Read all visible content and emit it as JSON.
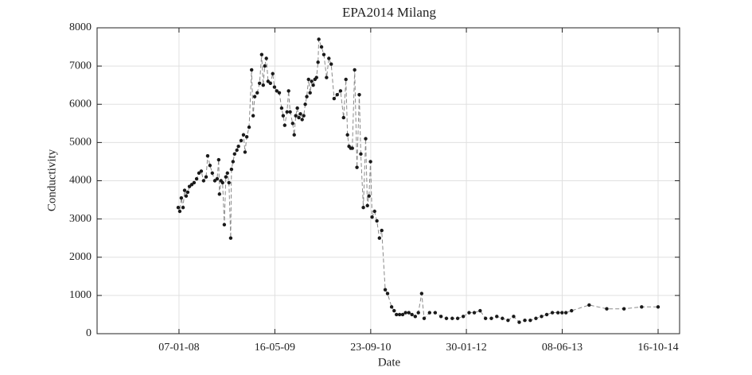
{
  "chart_data": {
    "type": "line",
    "title": "EPA2014 Milang",
    "xlabel": "Date",
    "ylabel": "Conductivity",
    "x": [
      "2008-01-03",
      "2008-01-11",
      "2008-01-19",
      "2008-01-28",
      "2008-02-05",
      "2008-02-13",
      "2008-02-21",
      "2008-03-01",
      "2008-03-13",
      "2008-03-25",
      "2008-04-07",
      "2008-04-19",
      "2008-05-01",
      "2008-05-13",
      "2008-05-26",
      "2008-06-03",
      "2008-06-15",
      "2008-06-27",
      "2008-07-10",
      "2008-07-22",
      "2008-07-30",
      "2008-08-03",
      "2008-08-11",
      "2008-08-19",
      "2008-08-28",
      "2008-09-05",
      "2008-09-13",
      "2008-09-21",
      "2008-09-30",
      "2008-10-04",
      "2008-10-12",
      "2008-10-20",
      "2008-11-01",
      "2008-11-09",
      "2008-11-23",
      "2008-12-05",
      "2008-12-13",
      "2008-12-22",
      "2009-01-03",
      "2009-01-16",
      "2009-01-24",
      "2009-02-01",
      "2009-02-14",
      "2009-02-26",
      "2009-03-09",
      "2009-03-17",
      "2009-03-25",
      "2009-04-02",
      "2009-04-11",
      "2009-04-23",
      "2009-05-05",
      "2009-05-14",
      "2009-05-26",
      "2009-06-08",
      "2009-06-20",
      "2009-06-28",
      "2009-07-06",
      "2009-07-18",
      "2009-07-26",
      "2009-08-03",
      "2009-08-16",
      "2009-08-24",
      "2009-09-01",
      "2009-09-09",
      "2009-09-17",
      "2009-09-25",
      "2009-10-04",
      "2009-10-12",
      "2009-10-20",
      "2009-10-28",
      "2009-11-06",
      "2009-11-14",
      "2009-11-22",
      "2009-11-30",
      "2009-12-09",
      "2009-12-17",
      "2009-12-25",
      "2009-12-29",
      "2010-01-12",
      "2010-01-24",
      "2010-02-07",
      "2010-02-19",
      "2010-03-03",
      "2010-03-18",
      "2010-04-03",
      "2010-04-20",
      "2010-05-06",
      "2010-05-18",
      "2010-05-26",
      "2010-06-03",
      "2010-06-12",
      "2010-06-20",
      "2010-07-02",
      "2010-07-14",
      "2010-07-26",
      "2010-08-03",
      "2010-08-16",
      "2010-08-28",
      "2010-09-06",
      "2010-09-14",
      "2010-09-22",
      "2010-09-30",
      "2010-10-13",
      "2010-10-25",
      "2010-11-07",
      "2010-11-19",
      "2010-12-07",
      "2010-12-19",
      "2011-01-09",
      "2011-01-22",
      "2011-02-03",
      "2011-02-19",
      "2011-03-07",
      "2011-03-22",
      "2011-04-08",
      "2011-04-24",
      "2011-05-11",
      "2011-05-27",
      "2011-06-13",
      "2011-06-26",
      "2011-07-24",
      "2011-08-22",
      "2011-09-21",
      "2011-10-19",
      "2011-11-18",
      "2011-12-16",
      "2012-01-14",
      "2012-02-13",
      "2012-03-11",
      "2012-04-10",
      "2012-05-08",
      "2012-06-07",
      "2012-07-05",
      "2012-08-03",
      "2012-09-01",
      "2012-09-30",
      "2012-10-29",
      "2012-11-27",
      "2012-12-25",
      "2013-01-23",
      "2013-02-21",
      "2013-03-20",
      "2013-04-18",
      "2013-05-17",
      "2013-06-07",
      "2013-06-27",
      "2013-07-26",
      "2013-10-25",
      "2014-01-24",
      "2014-04-23",
      "2014-07-23",
      "2014-10-16"
    ],
    "values": [
      3300,
      3200,
      3550,
      3300,
      3750,
      3600,
      3700,
      3850,
      3900,
      3950,
      4050,
      4200,
      4250,
      4000,
      4100,
      4650,
      4400,
      4200,
      4000,
      4050,
      4550,
      3650,
      4000,
      3950,
      2850,
      4100,
      4200,
      3950,
      2500,
      4300,
      4500,
      4700,
      4800,
      4900,
      5050,
      5200,
      4750,
      5150,
      5400,
      6900,
      5700,
      6200,
      6300,
      6550,
      7300,
      6500,
      7000,
      7200,
      6600,
      6550,
      6800,
      6450,
      6350,
      6300,
      5900,
      5700,
      5450,
      5800,
      6350,
      5800,
      5500,
      5200,
      5700,
      5900,
      5650,
      5750,
      5600,
      5700,
      6000,
      6200,
      6650,
      6300,
      6600,
      6500,
      6650,
      6700,
      7100,
      7700,
      7500,
      7300,
      6700,
      7200,
      7050,
      6150,
      6250,
      6350,
      5650,
      6650,
      5200,
      4900,
      4850,
      4850,
      6900,
      4350,
      6250,
      4700,
      3300,
      5100,
      3350,
      3600,
      4500,
      3050,
      3200,
      2950,
      2500,
      2700,
      1150,
      1050,
      700,
      600,
      500,
      500,
      500,
      550,
      550,
      500,
      450,
      550,
      1050,
      400,
      550,
      550,
      450,
      400,
      400,
      400,
      450,
      550,
      550,
      600,
      400,
      400,
      450,
      400,
      350,
      450,
      300,
      350,
      350,
      400,
      450,
      500,
      550,
      550,
      550,
      550,
      600,
      750,
      650,
      650,
      700,
      700
    ],
    "line_color": "#8a8a8a",
    "marker_color": "#1a1a1a",
    "xlim": [
      "2006-11-10",
      "2015-02-04"
    ],
    "xticks": [
      {
        "value": "2008-01-07",
        "label": "07-01-08"
      },
      {
        "value": "2009-05-16",
        "label": "16-05-09"
      },
      {
        "value": "2010-09-23",
        "label": "23-09-10"
      },
      {
        "value": "2012-01-30",
        "label": "30-01-12"
      },
      {
        "value": "2013-06-08",
        "label": "08-06-13"
      },
      {
        "value": "2014-10-16",
        "label": "16-10-14"
      }
    ],
    "ylim": [
      0,
      8000
    ],
    "yticks": [
      0,
      1000,
      2000,
      3000,
      4000,
      5000,
      6000,
      7000,
      8000
    ],
    "grid": true
  }
}
